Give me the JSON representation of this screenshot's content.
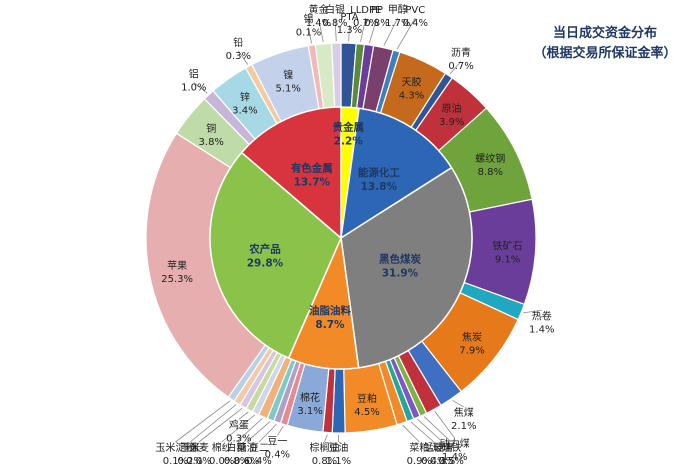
{
  "title": {
    "line1": "当日成交资金分布",
    "line2": "（根据交易所保证金率）"
  },
  "chart_data": {
    "type": "pie",
    "subtype": "sunburst",
    "inner": [
      {
        "label": "贵金属",
        "value": "2.2%",
        "color": "#ffff00",
        "text_color": "#1f3864"
      },
      {
        "label": "能源化工",
        "value": "13.8%",
        "color": "#2e66b6",
        "text_color": "#1f3864"
      },
      {
        "label": "黑色煤炭",
        "value": "31.9%",
        "color": "#7f7f7f",
        "text_color": "#1f3864"
      },
      {
        "label": "油脂油料",
        "value": "8.7%",
        "color": "#f28a28",
        "text_color": "#1f3864"
      },
      {
        "label": "农产品",
        "value": "29.8%",
        "color": "#8bc34a",
        "text_color": "#1f3864"
      },
      {
        "label": "有色金属",
        "value": "13.7%",
        "color": "#d8343e",
        "text_color": "#1f3864"
      }
    ],
    "outer": [
      {
        "label": "PTA",
        "value": "1.3%",
        "color": "#2f5597"
      },
      {
        "label": "LLDPE",
        "value": "0.7%",
        "color": "#5b8a3c"
      },
      {
        "label": "PP",
        "value": "0.8%",
        "color": "#6a3d9a"
      },
      {
        "label": "甲醇",
        "value": "1.7%",
        "color": "#7b3f6e"
      },
      {
        "label": "PVC",
        "value": "0.4%",
        "color": "#3f7fbf"
      },
      {
        "label": "天胶",
        "value": "4.3%",
        "color": "#c56a1c"
      },
      {
        "label": "沥青",
        "value": "0.7%",
        "color": "#2f5597"
      },
      {
        "label": "原油",
        "value": "3.9%",
        "color": "#c0313b"
      },
      {
        "label": "螺纹钢",
        "value": "8.8%",
        "color": "#6fa33c"
      },
      {
        "label": "铁矿石",
        "value": "9.1%",
        "color": "#6a3d9a"
      },
      {
        "label": "热卷",
        "value": "1.4%",
        "color": "#1fa8c0"
      },
      {
        "label": "焦炭",
        "value": "7.9%",
        "color": "#e67a1a"
      },
      {
        "label": "焦煤",
        "value": "2.1%",
        "color": "#3f6fc0"
      },
      {
        "label": "动力煤",
        "value": "1.4%",
        "color": "#c0313b"
      },
      {
        "label": "硅铁",
        "value": "0.5%",
        "color": "#7cb342"
      },
      {
        "label": "玻璃",
        "value": "0.3%",
        "color": "#7e57c2"
      },
      {
        "label": "锰硅",
        "value": "0.4%",
        "color": "#26a69a"
      },
      {
        "label": "菜粕",
        "value": "0.9%",
        "color": "#ef8a2b"
      },
      {
        "label": "豆粕",
        "value": "4.5%",
        "color": "#f28a28"
      },
      {
        "label": "豆油",
        "value": "1.1%",
        "color": "#2e66b6"
      },
      {
        "label": "棕榈油",
        "value": "0.8%",
        "color": "#c0313b"
      },
      {
        "label": "棉花",
        "value": "3.1%",
        "color": "#8aa9d8"
      },
      {
        "label": "豆一",
        "value": "0.4%",
        "color": "#e58a8f"
      },
      {
        "label": "豆二",
        "value": "0.4%",
        "color": "#b0a0c8"
      },
      {
        "label": "菜油",
        "value": "0.6%",
        "color": "#7ec8c8"
      },
      {
        "label": "白糖",
        "value": "0.8%",
        "color": "#f0b27a"
      },
      {
        "label": "棉纱",
        "value": "0.0%",
        "color": "#cfd8e8"
      },
      {
        "label": "鸡蛋",
        "value": "0.3%",
        "color": "#c9d9a0"
      },
      {
        "label": "强麦",
        "value": "0.0%",
        "color": "#d6c6e1"
      },
      {
        "label": "玉米",
        "value": "0.2%",
        "color": "#f6c9a8"
      },
      {
        "label": "玉米淀粉",
        "value": "0.1%",
        "color": "#b8d0e8"
      },
      {
        "label": "苹果",
        "value": "25.3%",
        "color": "#e6aeae"
      },
      {
        "label": "铜",
        "value": "3.8%",
        "color": "#bfdca8"
      },
      {
        "label": "铝",
        "value": "1.0%",
        "color": "#c7b6d9"
      },
      {
        "label": "锌",
        "value": "3.4%",
        "color": "#a6d8e6"
      },
      {
        "label": "铅",
        "value": "0.3%",
        "color": "#f7c9a0"
      },
      {
        "label": "镍",
        "value": "5.1%",
        "color": "#c4d1ea"
      },
      {
        "label": "锡",
        "value": "0.1%",
        "color": "#f2b9b9"
      },
      {
        "label": "黄金",
        "value": "1.4%",
        "color": "#d7e9c5"
      },
      {
        "label": "白银",
        "value": "0.8%",
        "color": "#d8cde6"
      }
    ]
  }
}
